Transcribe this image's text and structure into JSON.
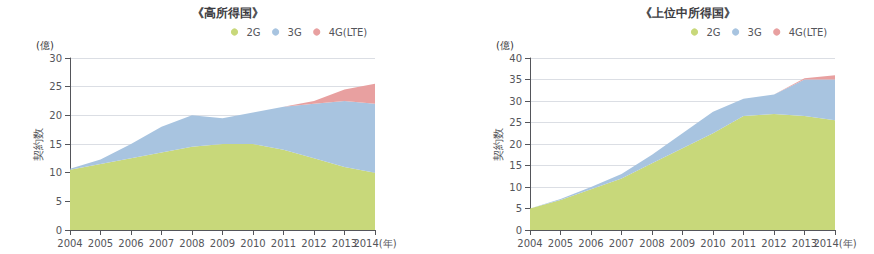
{
  "chart_data": [
    {
      "type": "area",
      "title": "《高所得国》",
      "ylabel": "契約数",
      "unit_label": "(億)",
      "categories": [
        "2004",
        "2005",
        "2006",
        "2007",
        "2008",
        "2009",
        "2010",
        "2011",
        "2012",
        "2013",
        "2014(年)"
      ],
      "series": [
        {
          "name": "2G",
          "color": "#c8d87a",
          "values": [
            10.5,
            11.5,
            12.5,
            13.5,
            14.5,
            15.0,
            15.0,
            14.0,
            12.5,
            11.0,
            10.0
          ]
        },
        {
          "name": "3G",
          "color": "#a8c4e0",
          "values": [
            0.2,
            0.8,
            2.5,
            4.5,
            5.5,
            4.5,
            5.5,
            7.5,
            9.5,
            11.5,
            12.0
          ]
        },
        {
          "name": "4G(LTE)",
          "color": "#e8a0a0",
          "values": [
            0.0,
            0.0,
            0.0,
            0.0,
            0.0,
            0.0,
            0.0,
            0.0,
            0.5,
            2.0,
            3.5
          ]
        }
      ],
      "stacked": true,
      "grid": true,
      "legend": "top",
      "ylim": [
        0,
        30
      ],
      "yticks": [
        0,
        5,
        10,
        15,
        20,
        25,
        30
      ]
    },
    {
      "type": "area",
      "title": "《上位中所得国》",
      "ylabel": "契約数",
      "unit_label": "(億)",
      "categories": [
        "2004",
        "2005",
        "2006",
        "2007",
        "2008",
        "2009",
        "2010",
        "2011",
        "2012",
        "2013",
        "2014(年)"
      ],
      "series": [
        {
          "name": "2G",
          "color": "#c8d87a",
          "values": [
            5.0,
            7.0,
            9.5,
            12.0,
            15.5,
            19.0,
            22.5,
            26.5,
            27.0,
            26.5,
            25.5
          ]
        },
        {
          "name": "3G",
          "color": "#a8c4e0",
          "values": [
            0.0,
            0.2,
            0.5,
            1.0,
            2.0,
            3.5,
            5.0,
            4.0,
            4.5,
            8.5,
            9.5
          ]
        },
        {
          "name": "4G(LTE)",
          "color": "#e8a0a0",
          "values": [
            0.0,
            0.0,
            0.0,
            0.0,
            0.0,
            0.0,
            0.0,
            0.0,
            0.0,
            0.3,
            1.0
          ]
        }
      ],
      "stacked": true,
      "grid": true,
      "legend": "top",
      "ylim": [
        0,
        40
      ],
      "yticks": [
        0,
        5,
        10,
        15,
        20,
        25,
        30,
        35,
        40
      ]
    }
  ]
}
